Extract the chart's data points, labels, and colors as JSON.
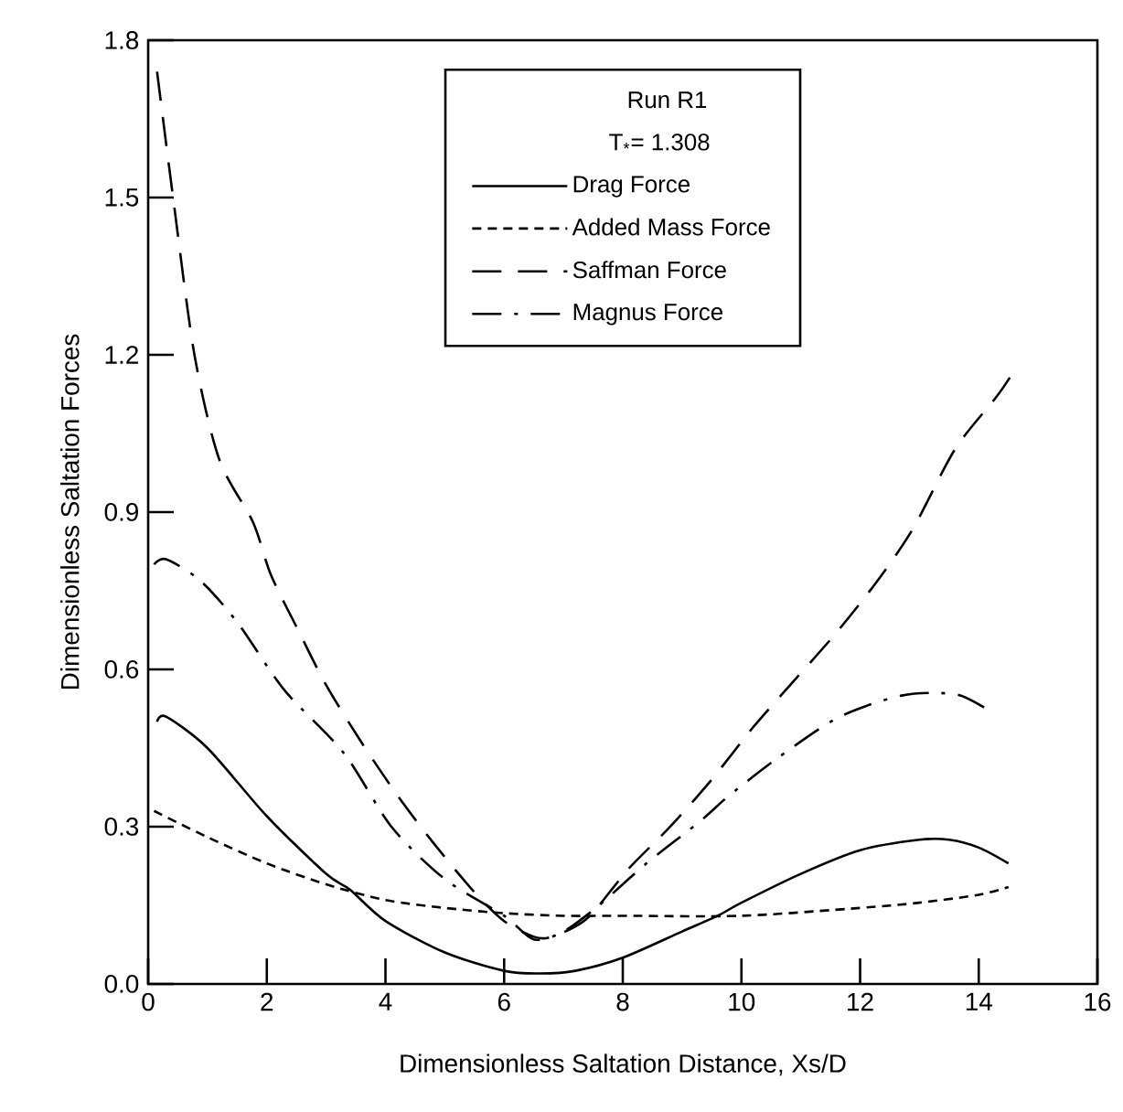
{
  "chart_data": {
    "type": "line",
    "xlabel": "Dimensionless Saltation Distance, Xs/D",
    "ylabel": "Dimensionless Saltation Forces",
    "legend_title": "Run R1",
    "annotations": [
      "T$_{*}$= 1.308"
    ],
    "xlim": [
      0,
      16
    ],
    "ylim": [
      0,
      1.8
    ],
    "xticks": [
      0,
      2,
      4,
      6,
      8,
      10,
      12,
      14,
      16
    ],
    "yticks": [
      {
        "value": 0,
        "label": "0.0"
      },
      0.3,
      0.6,
      0.9,
      1.2,
      1.5,
      1.8
    ],
    "legend": "top",
    "grid": false,
    "marker": "none",
    "series": [
      {
        "name": "Drag Force",
        "color": "#000000",
        "line_style": "solid",
        "x": [
          0.15,
          0.3,
          1,
          2,
          3,
          3.4,
          4,
          5,
          6,
          6.6,
          7.2,
          8,
          9,
          9.6,
          10,
          11,
          12,
          13,
          13.5,
          14,
          14.5
        ],
        "values": [
          0.5,
          0.51,
          0.45,
          0.32,
          0.21,
          0.18,
          0.12,
          0.06,
          0.025,
          0.02,
          0.025,
          0.05,
          0.1,
          0.13,
          0.155,
          0.21,
          0.255,
          0.275,
          0.275,
          0.26,
          0.23
        ]
      },
      {
        "name": "Added Mass Force",
        "color": "#000000",
        "line_style": "dashed",
        "x": [
          0.1,
          1,
          2,
          3,
          4,
          5,
          6,
          7,
          8,
          10,
          12,
          13,
          14,
          14.5
        ],
        "values": [
          0.33,
          0.28,
          0.23,
          0.19,
          0.16,
          0.145,
          0.135,
          0.13,
          0.13,
          0.13,
          0.145,
          0.155,
          0.17,
          0.185
        ]
      },
      {
        "name": "Saffman Force",
        "color": "#000000",
        "line_style": "long dashed",
        "x": [
          0.15,
          0.42,
          0.78,
          1.2,
          1.77,
          2.07,
          2.55,
          3.0,
          3.6,
          4.2,
          4.8,
          5.5,
          6.0,
          6.5,
          6.8,
          7.4,
          8.1,
          8.8,
          9.5,
          10.2,
          10.9,
          11.6,
          12.3,
          12.9,
          13.6,
          14.3,
          14.6
        ],
        "values": [
          1.74,
          1.5,
          1.2,
          1.0,
          0.88,
          0.78,
          0.67,
          0.57,
          0.46,
          0.36,
          0.27,
          0.175,
          0.12,
          0.09,
          0.09,
          0.125,
          0.22,
          0.3,
          0.39,
          0.49,
          0.58,
          0.67,
          0.77,
          0.87,
          1.02,
          1.12,
          1.17
        ]
      },
      {
        "name": "Magnus Force",
        "color": "#000000",
        "line_style": "dash dot",
        "x": [
          0.1,
          0.3,
          0.87,
          1.5,
          2.3,
          3.3,
          4.1,
          5.0,
          6.0,
          6.5,
          7.0,
          7.6,
          8.4,
          9.3,
          9.8,
          10.6,
          11.5,
          12.1,
          12.7,
          13.2,
          13.7,
          14.2
        ],
        "values": [
          0.8,
          0.81,
          0.77,
          0.69,
          0.56,
          0.44,
          0.3,
          0.2,
          0.13,
          0.085,
          0.1,
          0.15,
          0.23,
          0.31,
          0.36,
          0.43,
          0.5,
          0.53,
          0.55,
          0.555,
          0.55,
          0.52
        ]
      }
    ]
  }
}
